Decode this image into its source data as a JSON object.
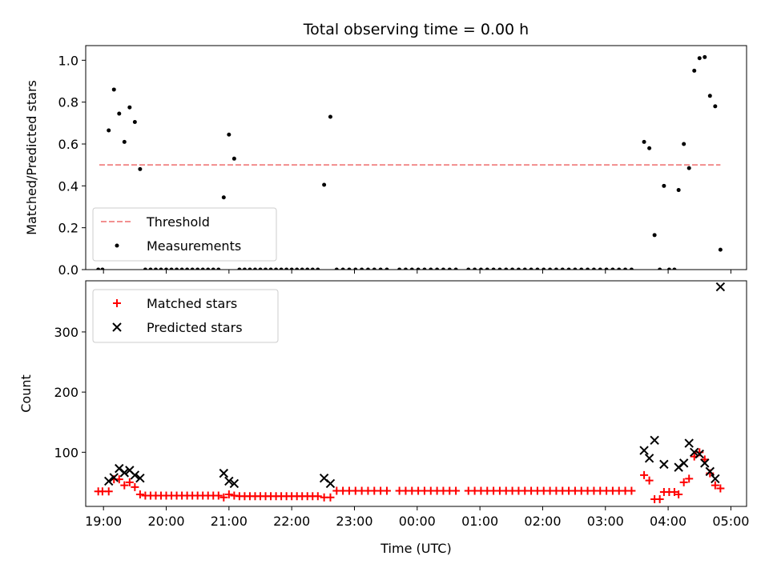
{
  "chart_data": [
    {
      "type": "scatter",
      "title": "Total observing time = 0.00 h",
      "xlabel": "",
      "ylabel": "Matched/Predicted stars",
      "xlim": [
        "18:43",
        "05:15"
      ],
      "ylim": [
        0,
        1.07
      ],
      "yticks": [
        0.0,
        0.2,
        0.4,
        0.6,
        0.8,
        1.0
      ],
      "yticklabels": [
        "0.0",
        "0.2",
        "0.4",
        "0.6",
        "0.8",
        "1.0"
      ],
      "xticks": [
        "19:00",
        "20:00",
        "21:00",
        "22:00",
        "23:00",
        "00:00",
        "01:00",
        "02:00",
        "03:00",
        "04:00",
        "05:00"
      ],
      "legend_position": "lower-left",
      "series": [
        {
          "name": "Threshold",
          "kind": "line",
          "style": "dashed",
          "color": "#f08080",
          "x": [
            "18:56",
            "04:50"
          ],
          "y": [
            0.5,
            0.5
          ]
        },
        {
          "name": "Measurements",
          "kind": "scatter",
          "color": "#000000",
          "points": [
            [
              "18:55",
              0.0
            ],
            [
              "18:59",
              0.0
            ],
            [
              "19:05",
              0.665
            ],
            [
              "19:10",
              0.86
            ],
            [
              "19:15",
              0.745
            ],
            [
              "19:20",
              0.61
            ],
            [
              "19:25",
              0.775
            ],
            [
              "19:30",
              0.705
            ],
            [
              "19:35",
              0.48
            ],
            [
              "19:40",
              0.0
            ],
            [
              "19:45",
              0.0
            ],
            [
              "19:50",
              0.0
            ],
            [
              "19:55",
              0.0
            ],
            [
              "20:00",
              0.0
            ],
            [
              "20:05",
              0.0
            ],
            [
              "20:10",
              0.0
            ],
            [
              "20:15",
              0.0
            ],
            [
              "20:20",
              0.0
            ],
            [
              "20:25",
              0.0
            ],
            [
              "20:30",
              0.0
            ],
            [
              "20:35",
              0.0
            ],
            [
              "20:40",
              0.0
            ],
            [
              "20:45",
              0.0
            ],
            [
              "20:50",
              0.0
            ],
            [
              "20:55",
              0.345
            ],
            [
              "21:00",
              0.645
            ],
            [
              "21:05",
              0.53
            ],
            [
              "21:10",
              0.0
            ],
            [
              "21:15",
              0.0
            ],
            [
              "21:20",
              0.0
            ],
            [
              "21:25",
              0.0
            ],
            [
              "21:30",
              0.0
            ],
            [
              "21:35",
              0.0
            ],
            [
              "21:40",
              0.0
            ],
            [
              "21:45",
              0.0
            ],
            [
              "21:50",
              0.0
            ],
            [
              "21:55",
              0.0
            ],
            [
              "22:00",
              0.0
            ],
            [
              "22:05",
              0.0
            ],
            [
              "22:10",
              0.0
            ],
            [
              "22:15",
              0.0
            ],
            [
              "22:20",
              0.0
            ],
            [
              "22:25",
              0.0
            ],
            [
              "22:31",
              0.405
            ],
            [
              "22:37",
              0.73
            ],
            [
              "22:43",
              0.0
            ],
            [
              "22:49",
              0.0
            ],
            [
              "22:55",
              0.0
            ],
            [
              "23:01",
              0.0
            ],
            [
              "23:07",
              0.0
            ],
            [
              "23:13",
              0.0
            ],
            [
              "23:19",
              0.0
            ],
            [
              "23:25",
              0.0
            ],
            [
              "23:31",
              0.0
            ],
            [
              "23:43",
              0.0
            ],
            [
              "23:49",
              0.0
            ],
            [
              "23:55",
              0.0
            ],
            [
              "00:01",
              0.0
            ],
            [
              "00:07",
              0.0
            ],
            [
              "00:13",
              0.0
            ],
            [
              "00:19",
              0.0
            ],
            [
              "00:25",
              0.0
            ],
            [
              "00:31",
              0.0
            ],
            [
              "00:37",
              0.0
            ],
            [
              "00:49",
              0.0
            ],
            [
              "00:55",
              0.0
            ],
            [
              "01:01",
              0.0
            ],
            [
              "01:07",
              0.0
            ],
            [
              "01:13",
              0.0
            ],
            [
              "01:19",
              0.0
            ],
            [
              "01:25",
              0.0
            ],
            [
              "01:31",
              0.0
            ],
            [
              "01:37",
              0.0
            ],
            [
              "01:43",
              0.0
            ],
            [
              "01:49",
              0.0
            ],
            [
              "01:55",
              0.0
            ],
            [
              "02:01",
              0.0
            ],
            [
              "02:07",
              0.0
            ],
            [
              "02:13",
              0.0
            ],
            [
              "02:19",
              0.0
            ],
            [
              "02:25",
              0.0
            ],
            [
              "02:31",
              0.0
            ],
            [
              "02:37",
              0.0
            ],
            [
              "02:43",
              0.0
            ],
            [
              "02:49",
              0.0
            ],
            [
              "02:55",
              0.0
            ],
            [
              "03:01",
              0.0
            ],
            [
              "03:07",
              0.0
            ],
            [
              "03:13",
              0.0
            ],
            [
              "03:19",
              0.0
            ],
            [
              "03:25",
              0.0
            ],
            [
              "03:37",
              0.61
            ],
            [
              "03:42",
              0.58
            ],
            [
              "03:47",
              0.165
            ],
            [
              "03:52",
              0.0
            ],
            [
              "03:56",
              0.4
            ],
            [
              "04:01",
              0.0
            ],
            [
              "04:06",
              0.0
            ],
            [
              "04:10",
              0.38
            ],
            [
              "04:15",
              0.6
            ],
            [
              "04:20",
              0.485
            ],
            [
              "04:25",
              0.95
            ],
            [
              "04:30",
              1.01
            ],
            [
              "04:35",
              1.015
            ],
            [
              "04:40",
              0.83
            ],
            [
              "04:45",
              0.78
            ],
            [
              "04:50",
              0.095
            ]
          ]
        }
      ]
    },
    {
      "type": "scatter",
      "title": "",
      "xlabel": "Time (UTC)",
      "ylabel": "Count",
      "xlim": [
        "18:43",
        "05:15"
      ],
      "ylim": [
        10,
        385
      ],
      "yticks": [
        100,
        200,
        300
      ],
      "yticklabels": [
        "100",
        "200",
        "300"
      ],
      "xticks": [
        "19:00",
        "20:00",
        "21:00",
        "22:00",
        "23:00",
        "00:00",
        "01:00",
        "02:00",
        "03:00",
        "04:00",
        "05:00"
      ],
      "xticklabels": [
        "19:00",
        "20:00",
        "21:00",
        "22:00",
        "23:00",
        "00:00",
        "01:00",
        "02:00",
        "03:00",
        "04:00",
        "05:00"
      ],
      "legend_position": "upper-left",
      "series": [
        {
          "name": "Matched stars",
          "marker": "plus",
          "color": "#ff0000",
          "points": [
            [
              "18:55",
              35
            ],
            [
              "18:59",
              35
            ],
            [
              "19:05",
              35
            ],
            [
              "19:10",
              55
            ],
            [
              "19:15",
              55
            ],
            [
              "19:20",
              45
            ],
            [
              "19:25",
              50
            ],
            [
              "19:30",
              42
            ],
            [
              "19:35",
              30
            ],
            [
              "19:40",
              28
            ],
            [
              "19:45",
              28
            ],
            [
              "19:50",
              28
            ],
            [
              "19:55",
              28
            ],
            [
              "20:00",
              28
            ],
            [
              "20:05",
              28
            ],
            [
              "20:10",
              28
            ],
            [
              "20:15",
              28
            ],
            [
              "20:20",
              28
            ],
            [
              "20:25",
              28
            ],
            [
              "20:30",
              28
            ],
            [
              "20:35",
              28
            ],
            [
              "20:40",
              28
            ],
            [
              "20:45",
              28
            ],
            [
              "20:50",
              28
            ],
            [
              "20:55",
              25
            ],
            [
              "21:00",
              30
            ],
            [
              "21:05",
              28
            ],
            [
              "21:10",
              27
            ],
            [
              "21:15",
              27
            ],
            [
              "21:20",
              27
            ],
            [
              "21:25",
              27
            ],
            [
              "21:30",
              27
            ],
            [
              "21:35",
              27
            ],
            [
              "21:40",
              27
            ],
            [
              "21:45",
              27
            ],
            [
              "21:50",
              27
            ],
            [
              "21:55",
              27
            ],
            [
              "22:00",
              27
            ],
            [
              "22:05",
              27
            ],
            [
              "22:10",
              27
            ],
            [
              "22:15",
              27
            ],
            [
              "22:20",
              27
            ],
            [
              "22:25",
              27
            ],
            [
              "22:31",
              25
            ],
            [
              "22:37",
              25
            ],
            [
              "22:43",
              36
            ],
            [
              "22:49",
              36
            ],
            [
              "22:55",
              36
            ],
            [
              "23:01",
              36
            ],
            [
              "23:07",
              36
            ],
            [
              "23:13",
              36
            ],
            [
              "23:19",
              36
            ],
            [
              "23:25",
              36
            ],
            [
              "23:31",
              36
            ],
            [
              "23:43",
              36
            ],
            [
              "23:49",
              36
            ],
            [
              "23:55",
              36
            ],
            [
              "00:01",
              36
            ],
            [
              "00:07",
              36
            ],
            [
              "00:13",
              36
            ],
            [
              "00:19",
              36
            ],
            [
              "00:25",
              36
            ],
            [
              "00:31",
              36
            ],
            [
              "00:37",
              36
            ],
            [
              "00:49",
              36
            ],
            [
              "00:55",
              36
            ],
            [
              "01:01",
              36
            ],
            [
              "01:07",
              36
            ],
            [
              "01:13",
              36
            ],
            [
              "01:19",
              36
            ],
            [
              "01:25",
              36
            ],
            [
              "01:31",
              36
            ],
            [
              "01:37",
              36
            ],
            [
              "01:43",
              36
            ],
            [
              "01:49",
              36
            ],
            [
              "01:55",
              36
            ],
            [
              "02:01",
              36
            ],
            [
              "02:07",
              36
            ],
            [
              "02:13",
              36
            ],
            [
              "02:19",
              36
            ],
            [
              "02:25",
              36
            ],
            [
              "02:31",
              36
            ],
            [
              "02:37",
              36
            ],
            [
              "02:43",
              36
            ],
            [
              "02:49",
              36
            ],
            [
              "02:55",
              36
            ],
            [
              "03:01",
              36
            ],
            [
              "03:07",
              36
            ],
            [
              "03:13",
              36
            ],
            [
              "03:19",
              36
            ],
            [
              "03:25",
              36
            ],
            [
              "03:37",
              62
            ],
            [
              "03:42",
              53
            ],
            [
              "03:47",
              22
            ],
            [
              "03:52",
              22
            ],
            [
              "03:56",
              34
            ],
            [
              "04:01",
              34
            ],
            [
              "04:06",
              34
            ],
            [
              "04:10",
              30
            ],
            [
              "04:15",
              50
            ],
            [
              "04:20",
              56
            ],
            [
              "04:25",
              93
            ],
            [
              "04:30",
              100
            ],
            [
              "04:35",
              88
            ],
            [
              "04:40",
              65
            ],
            [
              "04:45",
              45
            ],
            [
              "04:50",
              40
            ]
          ]
        },
        {
          "name": "Predicted stars",
          "marker": "x",
          "color": "#000000",
          "points": [
            [
              "19:05",
              52
            ],
            [
              "19:10",
              58
            ],
            [
              "19:15",
              73
            ],
            [
              "19:20",
              66
            ],
            [
              "19:25",
              70
            ],
            [
              "19:30",
              62
            ],
            [
              "19:35",
              57
            ],
            [
              "20:55",
              65
            ],
            [
              "21:00",
              52
            ],
            [
              "21:05",
              48
            ],
            [
              "22:31",
              57
            ],
            [
              "22:37",
              48
            ],
            [
              "03:37",
              103
            ],
            [
              "03:42",
              90
            ],
            [
              "03:47",
              120
            ],
            [
              "03:56",
              80
            ],
            [
              "04:10",
              75
            ],
            [
              "04:15",
              82
            ],
            [
              "04:20",
              115
            ],
            [
              "04:25",
              100
            ],
            [
              "04:30",
              97
            ],
            [
              "04:35",
              82
            ],
            [
              "04:40",
              68
            ],
            [
              "04:45",
              56
            ],
            [
              "04:50",
              375
            ]
          ]
        }
      ]
    }
  ]
}
